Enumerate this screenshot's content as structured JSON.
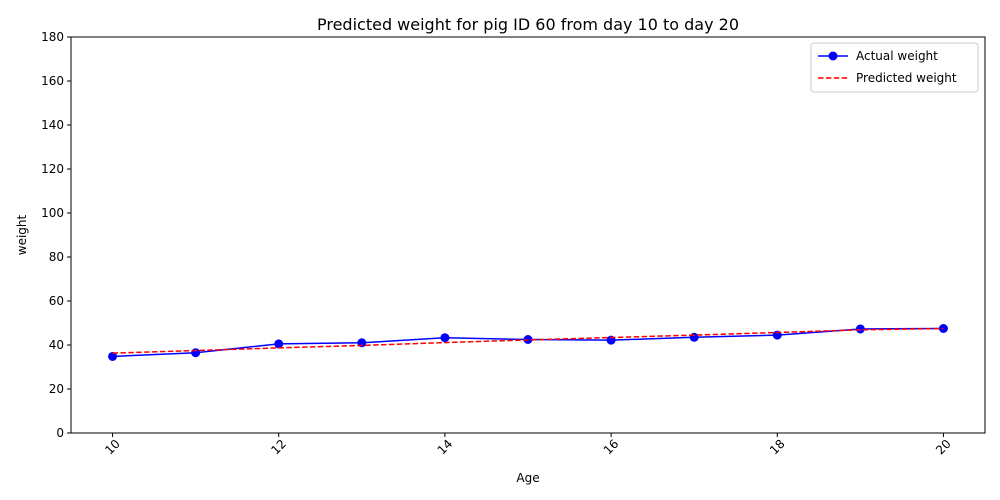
{
  "chart_data": {
    "type": "line",
    "title": "Predicted weight for pig ID 60 from day 10 to day 20",
    "xlabel": "Age",
    "ylabel": "weight",
    "x": [
      10,
      11,
      12,
      13,
      14,
      15,
      16,
      17,
      18,
      19,
      20
    ],
    "xlim": [
      9.5,
      20.5
    ],
    "ylim": [
      0,
      180
    ],
    "xticks": [
      10,
      12,
      14,
      16,
      18,
      20
    ],
    "yticks": [
      0,
      20,
      40,
      60,
      80,
      100,
      120,
      140,
      160,
      180
    ],
    "grid": false,
    "legend_position": "top-right",
    "series": [
      {
        "name": "Actual weight",
        "color": "#0000ff",
        "style": "solid",
        "marker": "circle",
        "values": [
          34.8,
          36.5,
          40.5,
          41.0,
          43.3,
          42.5,
          42.2,
          43.5,
          44.5,
          47.3,
          47.5
        ]
      },
      {
        "name": "Predicted weight",
        "color": "#ff0000",
        "style": "dashed",
        "marker": "none",
        "values": [
          36.3,
          37.5,
          38.7,
          39.8,
          41.1,
          42.3,
          43.4,
          44.5,
          45.7,
          46.9,
          47.5
        ]
      }
    ]
  }
}
